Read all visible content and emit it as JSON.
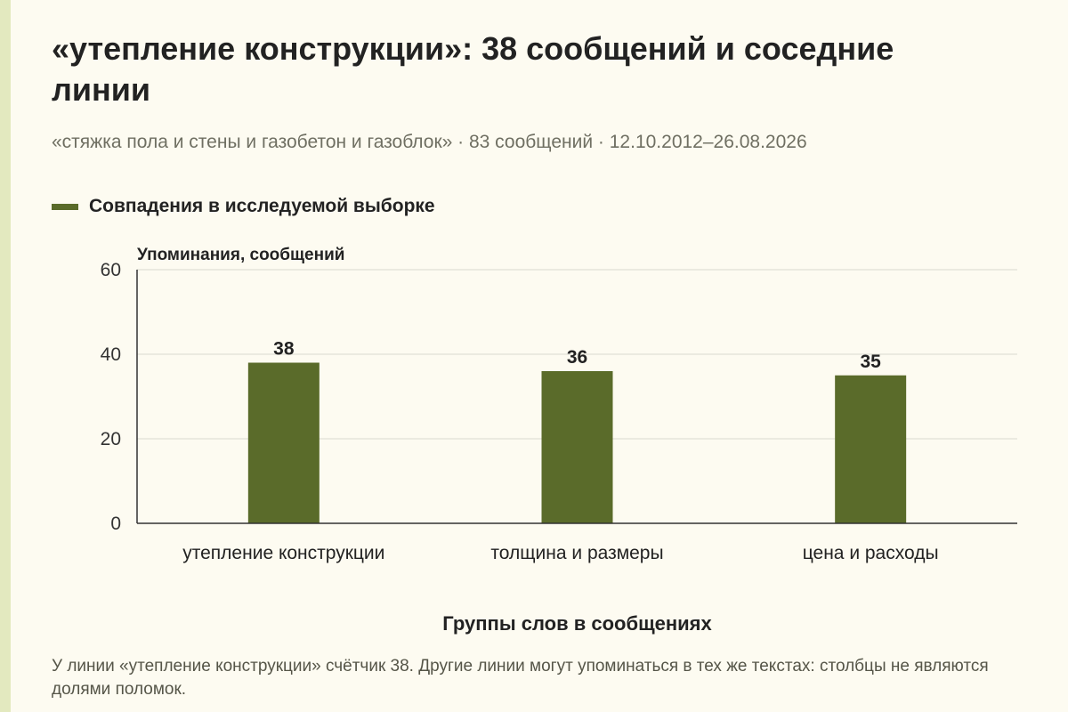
{
  "title": "«утепление конструкции»: 38 сообщений и соседние линии",
  "subtitle": "«стяжка пола и стены и газобетон и газоблок» · 83 сообщений · 12.10.2012–26.08.2026",
  "colors": {
    "bar": "#5a6b2a",
    "background": "#fdfbf1",
    "grid": "#d9d9d0",
    "accent_strip": "#e3e9bf"
  },
  "chart_data": {
    "type": "bar",
    "categories": [
      "утепление конструкции",
      "толщина и размеры",
      "цена и расходы"
    ],
    "series": [
      {
        "name": "Совпадения в исследуемой выборке",
        "values": [
          38,
          36,
          35
        ]
      }
    ],
    "ylabel": "Упоминания, сообщений",
    "xlabel": "Группы слов в сообщениях",
    "ylim": [
      0,
      60
    ],
    "yticks": [
      0,
      20,
      40,
      60
    ],
    "grid": true,
    "legend": "top-left"
  },
  "note": "У линии «утепление конструкции» счётчик 38. Другие линии могут упоминаться в тех же текстах: столбцы не являются долями поломок."
}
